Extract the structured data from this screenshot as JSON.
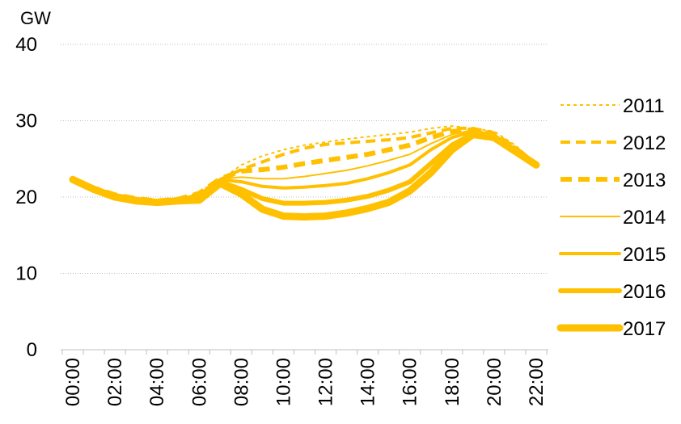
{
  "chart_data": {
    "type": "line",
    "unit_label": "GW",
    "ylim": [
      0,
      40
    ],
    "y_ticks": [
      "0",
      "10",
      "20",
      "30",
      "40"
    ],
    "x": [
      "00:00",
      "01:00",
      "02:00",
      "03:00",
      "04:00",
      "05:00",
      "06:00",
      "07:00",
      "08:00",
      "09:00",
      "10:00",
      "11:00",
      "12:00",
      "13:00",
      "14:00",
      "15:00",
      "16:00",
      "17:00",
      "18:00",
      "19:00",
      "20:00",
      "21:00",
      "22:00"
    ],
    "x_tick_labels": [
      "00:00",
      "02:00",
      "04:00",
      "06:00",
      "08:00",
      "10:00",
      "12:00",
      "14:00",
      "16:00",
      "18:00",
      "20:00",
      "22:00"
    ],
    "grid": "horizontal",
    "legend_position": "right",
    "color": "#ffc000",
    "series": [
      {
        "name": "2011",
        "style": "dotted",
        "values": [
          22.3,
          21.2,
          20.3,
          19.8,
          19.5,
          19.7,
          20.5,
          22.2,
          24.2,
          25.4,
          26.2,
          26.8,
          27.2,
          27.6,
          27.9,
          28.2,
          28.5,
          29.0,
          29.3,
          29.0,
          28.6,
          26.8,
          24.4
        ]
      },
      {
        "name": "2012",
        "style": "dashed",
        "values": [
          22.3,
          21.2,
          20.3,
          19.8,
          19.5,
          19.7,
          20.5,
          22.3,
          23.6,
          24.6,
          25.6,
          26.4,
          26.9,
          27.1,
          27.3,
          27.5,
          27.8,
          28.4,
          29.0,
          29.0,
          28.4,
          26.5,
          24.3
        ]
      },
      {
        "name": "2013",
        "style": "dashed-thick",
        "values": [
          22.3,
          21.2,
          20.3,
          19.8,
          19.5,
          19.7,
          20.5,
          22.4,
          23.4,
          23.6,
          23.9,
          24.4,
          24.8,
          25.2,
          25.6,
          26.2,
          26.8,
          27.8,
          28.6,
          28.8,
          28.2,
          26.4,
          24.3
        ]
      },
      {
        "name": "2014",
        "style": "thin",
        "values": [
          22.3,
          21.2,
          20.3,
          19.8,
          19.5,
          19.7,
          20.4,
          22.4,
          22.6,
          22.4,
          22.4,
          22.7,
          23.1,
          23.5,
          24.1,
          24.8,
          25.6,
          27.0,
          28.2,
          28.8,
          28.2,
          26.3,
          24.3
        ]
      },
      {
        "name": "2015",
        "style": "medium",
        "values": [
          22.3,
          21.2,
          20.3,
          19.8,
          19.5,
          19.7,
          20.3,
          22.3,
          22.0,
          21.4,
          21.2,
          21.3,
          21.5,
          21.8,
          22.4,
          23.2,
          24.2,
          26.2,
          27.8,
          28.6,
          28.0,
          26.2,
          24.3
        ]
      },
      {
        "name": "2016",
        "style": "thick",
        "values": [
          22.3,
          21.1,
          20.2,
          19.7,
          19.4,
          19.6,
          20.0,
          22.0,
          21.0,
          19.8,
          19.2,
          19.2,
          19.3,
          19.6,
          20.1,
          20.9,
          22.0,
          24.4,
          26.8,
          28.3,
          27.9,
          26.1,
          24.3
        ]
      },
      {
        "name": "2017",
        "style": "thickest",
        "values": [
          22.3,
          21.0,
          20.0,
          19.5,
          19.3,
          19.5,
          19.6,
          21.8,
          20.4,
          18.4,
          17.5,
          17.4,
          17.5,
          17.9,
          18.5,
          19.3,
          20.8,
          23.2,
          26.2,
          28.2,
          27.8,
          26.0,
          24.2
        ]
      }
    ]
  }
}
